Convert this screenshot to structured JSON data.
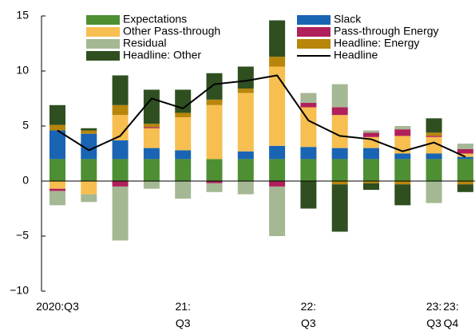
{
  "chart_data": {
    "type": "bar",
    "stacked": true,
    "categories": [
      "2020:Q3",
      null,
      null,
      null,
      "21:\nQ3",
      null,
      null,
      null,
      "22:\nQ3",
      null,
      null,
      null,
      "23:\nQ3",
      "23:\nQ4"
    ],
    "ylim": [
      -10,
      15
    ],
    "yticks": [
      {
        "value": -10,
        "label": "−10"
      },
      {
        "value": -5,
        "label": "−5"
      },
      0,
      5,
      10,
      15
    ],
    "series": [
      {
        "name": "Expectations",
        "color": "#4e8f33",
        "values": [
          2,
          2,
          2,
          2,
          2,
          2,
          2,
          2,
          2,
          2,
          2,
          2,
          2,
          2
        ]
      },
      {
        "name": "Slack",
        "color": "#1a64b4",
        "values": [
          2.6,
          2.3,
          1.7,
          1,
          0.8,
          0,
          0.7,
          1.2,
          1.1,
          1,
          1,
          0.5,
          0.5,
          0.2
        ]
      },
      {
        "name": "Other Pass-through",
        "color": "#f7bf4f",
        "values": [
          -0.7,
          -1.2,
          2.3,
          1.8,
          3.0,
          4.9,
          5.3,
          7.2,
          3.6,
          3.0,
          1.0,
          1.6,
          1.5,
          0.3
        ]
      },
      {
        "name": "Pass-through Energy",
        "color": "#b0205a",
        "values": [
          -0.2,
          0,
          -0.5,
          0.1,
          0,
          -0.2,
          0,
          -0.5,
          0.4,
          0.7,
          0.4,
          0.6,
          0.1,
          0.4
        ]
      },
      {
        "name": "Residual",
        "color": "#a5b894",
        "values": [
          -1.3,
          -0.7,
          -4.9,
          -0.7,
          -1.6,
          -0.8,
          -1.2,
          -4.5,
          0.9,
          2.1,
          0.2,
          0.3,
          -2.0,
          0.5
        ]
      },
      {
        "name": "Headline: Energy",
        "color": "#b8860b",
        "values": [
          0.5,
          0.3,
          0.9,
          0.3,
          0.4,
          0.5,
          0.4,
          0.9,
          0,
          -0.3,
          -0.2,
          -0.3,
          0.3,
          -0.3
        ]
      },
      {
        "name": "Headline: Other",
        "color": "#2f4f20",
        "values": [
          1.8,
          0.2,
          2.7,
          3.1,
          2.1,
          2.4,
          2.0,
          3.3,
          -2.5,
          -4.3,
          -0.6,
          -1.9,
          1.3,
          -0.7
        ]
      },
      {
        "name": "Headline",
        "type": "line",
        "color": "#000000",
        "values": [
          4.6,
          2.8,
          4.1,
          7.5,
          6.6,
          8.8,
          9.1,
          9.6,
          5.5,
          4.1,
          3.8,
          2.7,
          3.5,
          2.2
        ]
      }
    ]
  }
}
